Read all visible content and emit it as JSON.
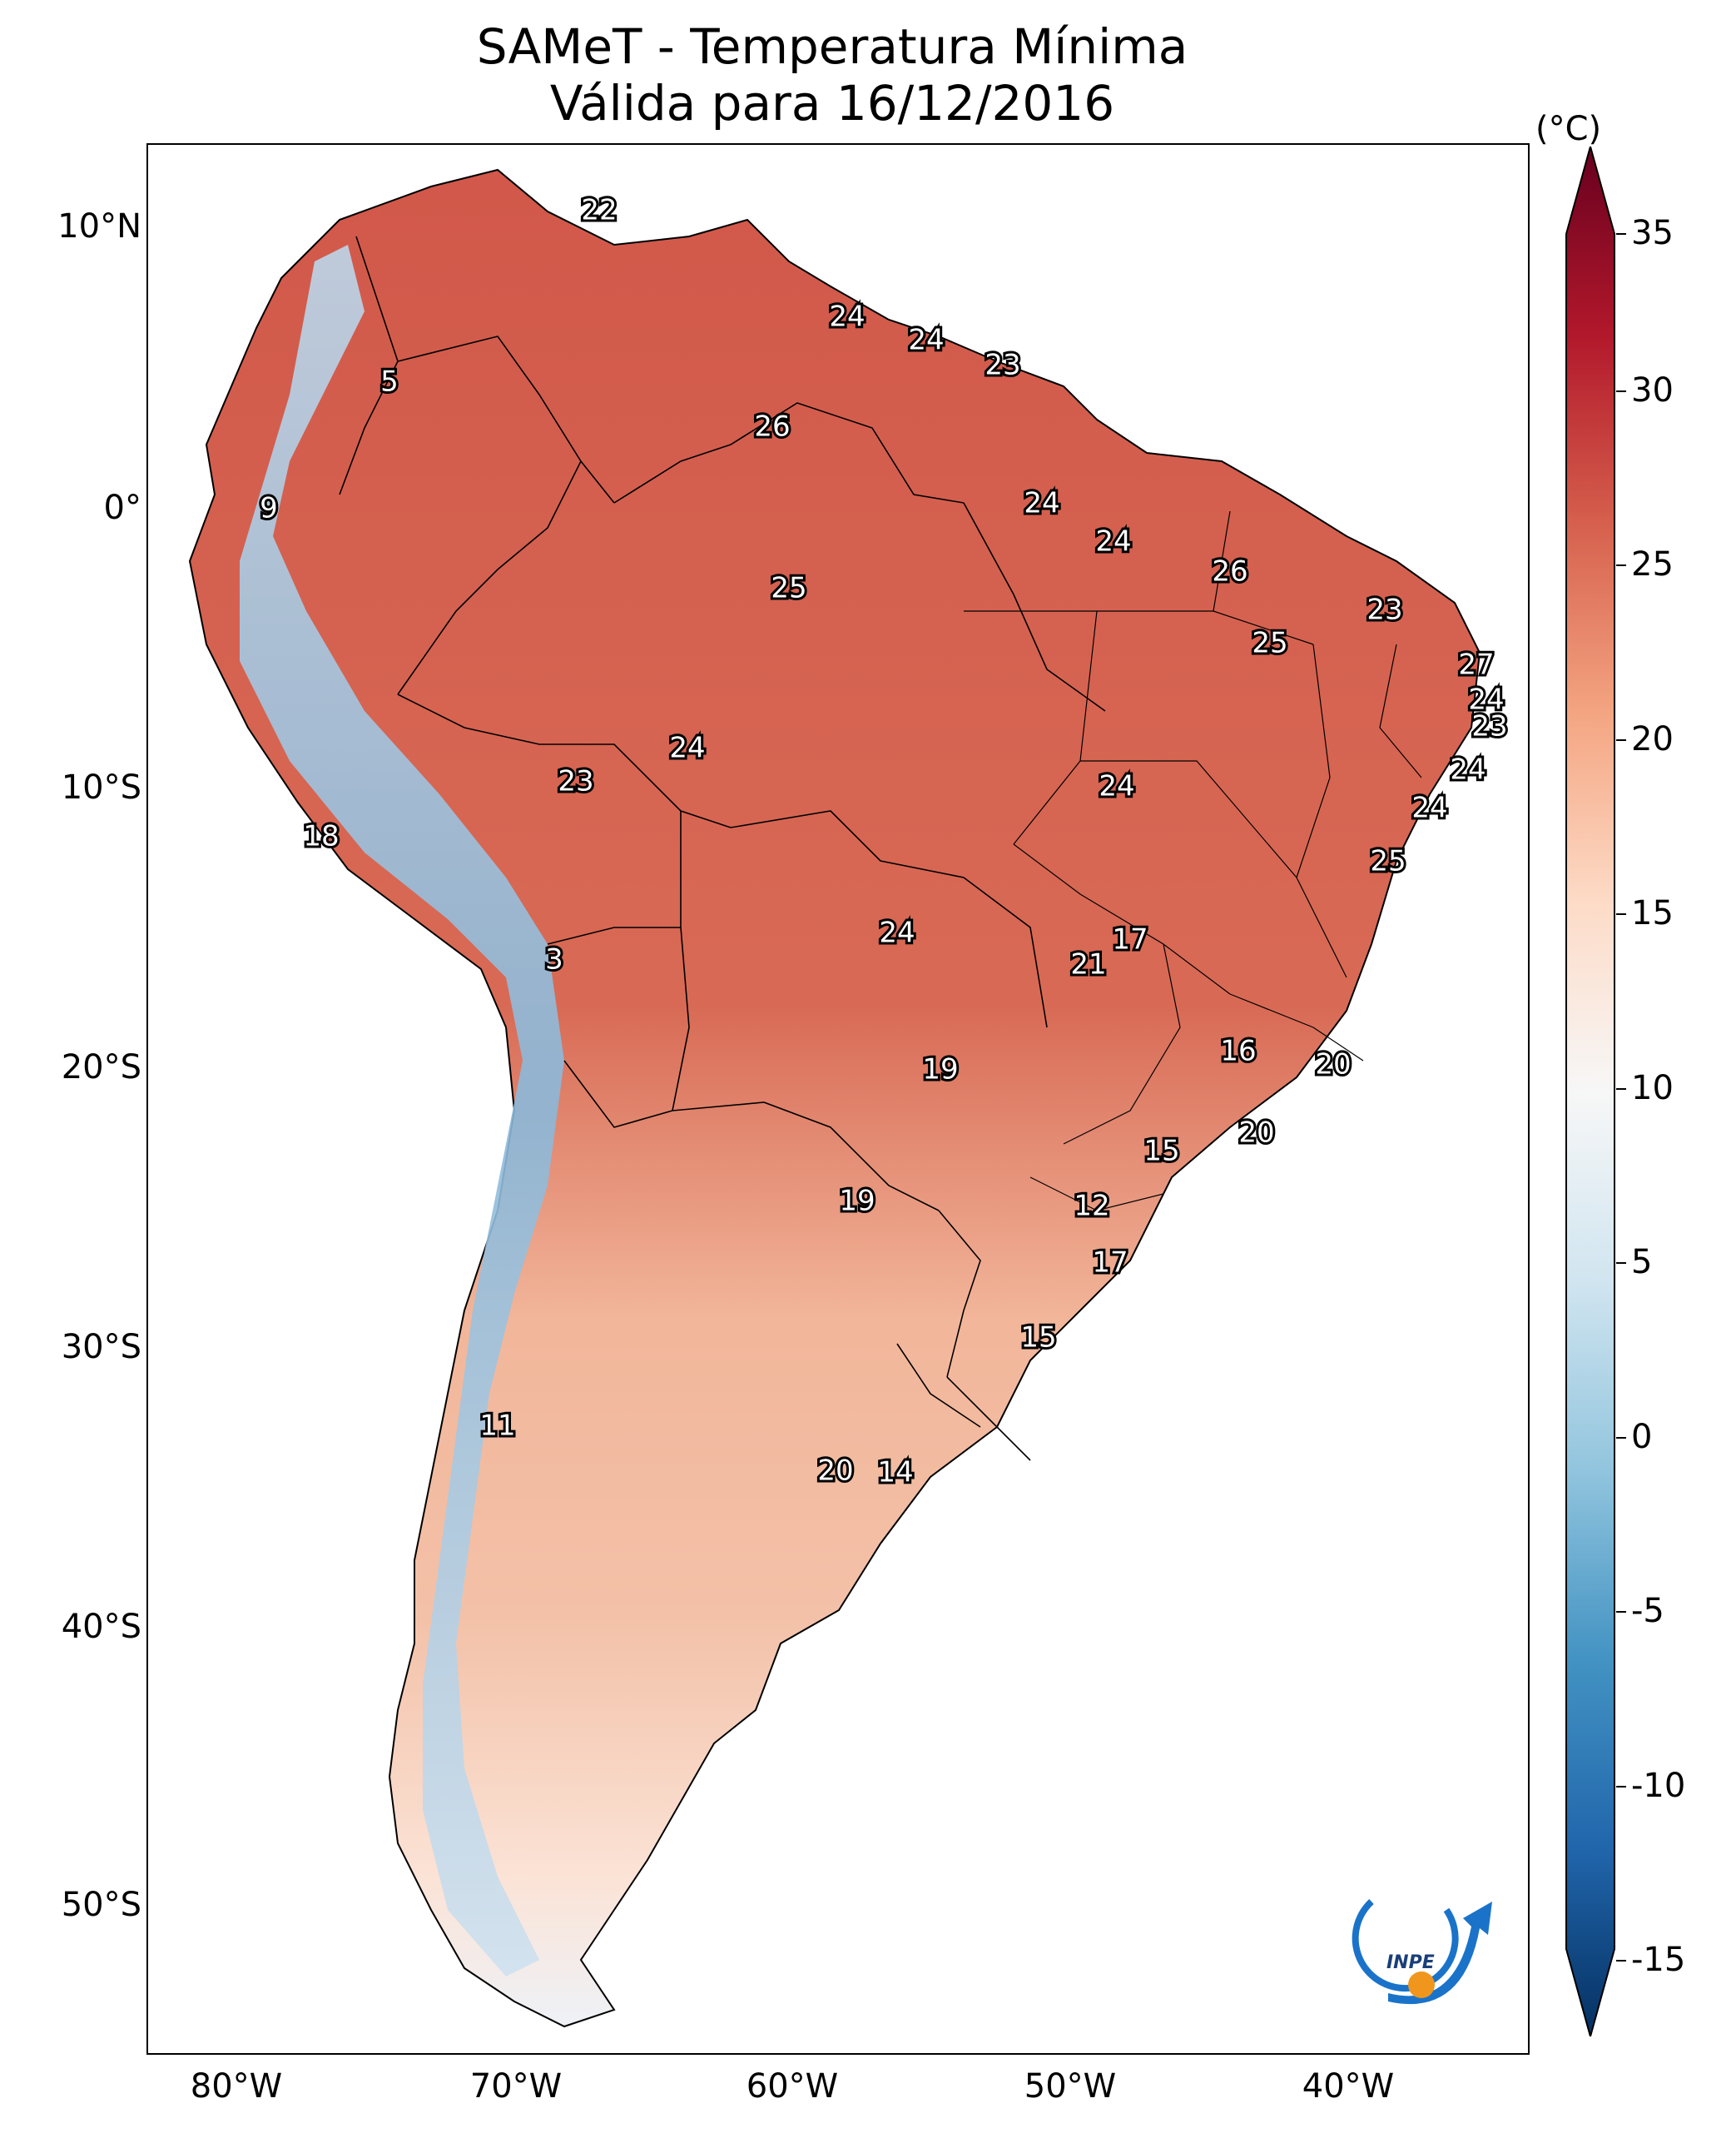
{
  "title_line1": "SAMeT - Temperatura Mínima",
  "title_line2": "Válida para 16/12/2016",
  "lat_labels": [
    "10°N",
    "0°",
    "10°S",
    "20°S",
    "30°S",
    "40°S",
    "50°S"
  ],
  "lon_labels": [
    "80°W",
    "70°W",
    "60°W",
    "50°W",
    "40°W"
  ],
  "colorbar": {
    "unit": "(°C)",
    "ticks": [
      "35",
      "30",
      "25",
      "20",
      "15",
      "10",
      "5",
      "0",
      "-5",
      "-10",
      "-15"
    ],
    "colors": [
      "#67001f",
      "#b2182b",
      "#d6604d",
      "#f4a582",
      "#fddbc7",
      "#f7f7f7",
      "#d1e5f0",
      "#92c5de",
      "#4393c3",
      "#2166ac",
      "#053061"
    ]
  },
  "logo": {
    "text": "INPE"
  },
  "values": [
    {
      "t": "22"
    },
    {
      "t": "5"
    },
    {
      "t": "24"
    },
    {
      "t": "24"
    },
    {
      "t": "23"
    },
    {
      "t": "26"
    },
    {
      "t": "9"
    },
    {
      "t": "24"
    },
    {
      "t": "24"
    },
    {
      "t": "26"
    },
    {
      "t": "25"
    },
    {
      "t": "23"
    },
    {
      "t": "25"
    },
    {
      "t": "27"
    },
    {
      "t": "24"
    },
    {
      "t": "23"
    },
    {
      "t": "24"
    },
    {
      "t": "23"
    },
    {
      "t": "24"
    },
    {
      "t": "24"
    },
    {
      "t": "24"
    },
    {
      "t": "18"
    },
    {
      "t": "25"
    },
    {
      "t": "17"
    },
    {
      "t": "21"
    },
    {
      "t": "24"
    },
    {
      "t": "3"
    },
    {
      "t": "16"
    },
    {
      "t": "20"
    },
    {
      "t": "19"
    },
    {
      "t": "20"
    },
    {
      "t": "15"
    },
    {
      "t": "19"
    },
    {
      "t": "12"
    },
    {
      "t": "17"
    },
    {
      "t": "15"
    },
    {
      "t": "11"
    },
    {
      "t": "20"
    },
    {
      "t": "14"
    }
  ]
}
